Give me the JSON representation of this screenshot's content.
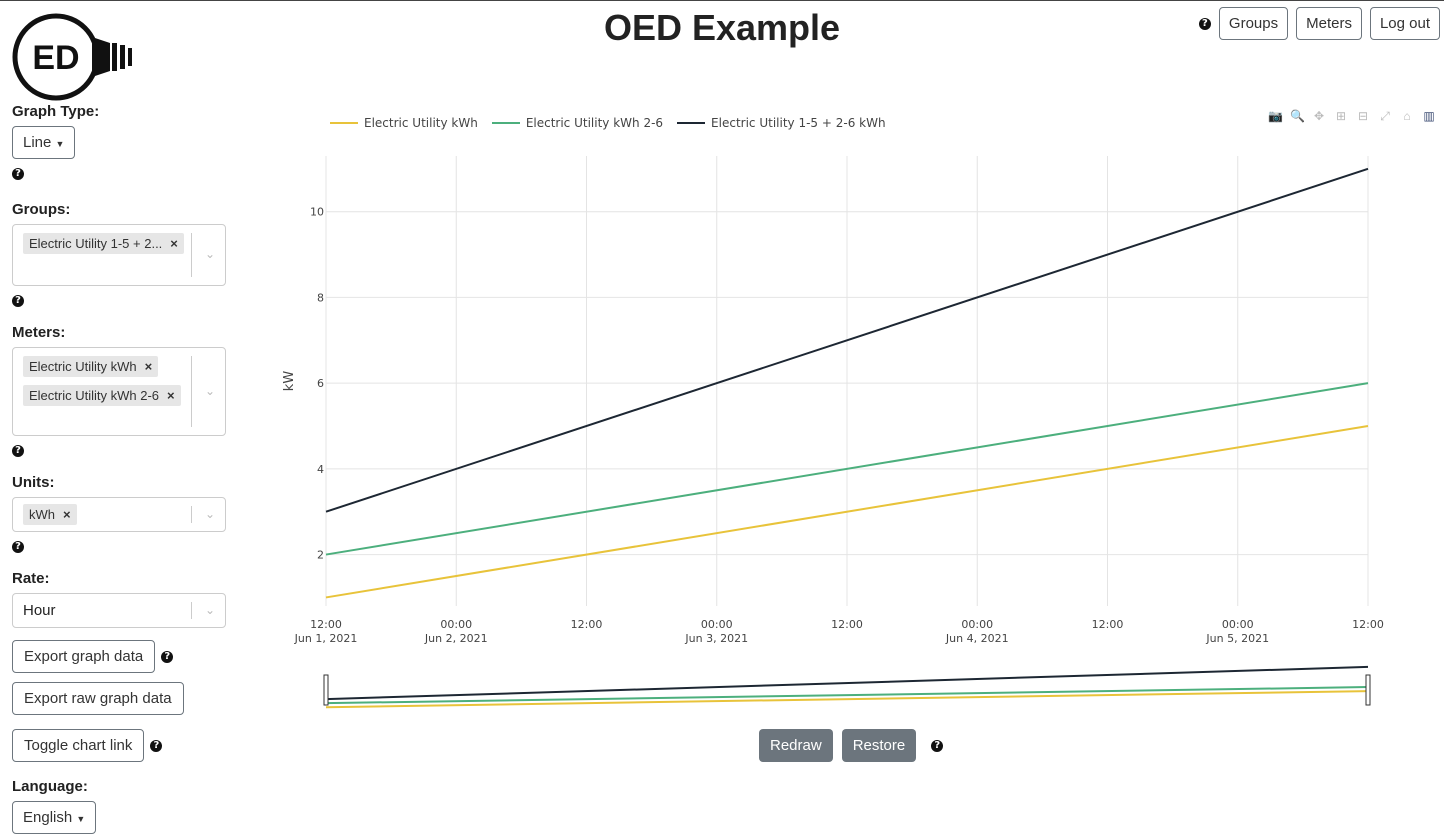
{
  "app": {
    "title": "OED Example",
    "logo_text": "ED"
  },
  "nav": {
    "help": "?",
    "groups": "Groups",
    "meters": "Meters",
    "logout": "Log out"
  },
  "sidebar": {
    "graph_type": {
      "label": "Graph Type:",
      "value": "Line"
    },
    "groups": {
      "label": "Groups:",
      "chips": [
        "Electric Utility 1-5 + 2..."
      ]
    },
    "meters": {
      "label": "Meters:",
      "chips": [
        "Electric Utility kWh",
        "Electric Utility kWh 2-6"
      ]
    },
    "units": {
      "label": "Units:",
      "chips": [
        "kWh"
      ]
    },
    "rate": {
      "label": "Rate:",
      "value": "Hour"
    },
    "export_graph": "Export graph data",
    "export_raw": "Export raw graph data",
    "toggle_link": "Toggle chart link",
    "language": {
      "label": "Language:",
      "value": "English"
    },
    "chip_remove": "×",
    "help": "?"
  },
  "chart_data": {
    "type": "line",
    "ylabel": "kW",
    "xlabel": "",
    "title": "",
    "ylim": [
      0.8,
      11.3
    ],
    "yticks": [
      2,
      4,
      6,
      8,
      10
    ],
    "grid": true,
    "legend_position": "top-left",
    "x": [
      "2021-06-01 12:00",
      "2021-06-05 12:00"
    ],
    "xlim": [
      "2021-06-01 12:00",
      "2021-06-05 12:00"
    ],
    "xticks": [
      {
        "value": "2021-06-01 12:00",
        "line1": "12:00",
        "line2": "Jun 1, 2021"
      },
      {
        "value": "2021-06-02 00:00",
        "line1": "00:00",
        "line2": "Jun 2, 2021"
      },
      {
        "value": "2021-06-02 12:00",
        "line1": "12:00",
        "line2": ""
      },
      {
        "value": "2021-06-03 00:00",
        "line1": "00:00",
        "line2": "Jun 3, 2021"
      },
      {
        "value": "2021-06-03 12:00",
        "line1": "12:00",
        "line2": ""
      },
      {
        "value": "2021-06-04 00:00",
        "line1": "00:00",
        "line2": "Jun 4, 2021"
      },
      {
        "value": "2021-06-04 12:00",
        "line1": "12:00",
        "line2": ""
      },
      {
        "value": "2021-06-05 00:00",
        "line1": "00:00",
        "line2": "Jun 5, 2021"
      },
      {
        "value": "2021-06-05 12:00",
        "line1": "12:00",
        "line2": ""
      }
    ],
    "series": [
      {
        "name": "Electric Utility kWh",
        "color": "#e8c33a",
        "values": [
          1,
          5
        ]
      },
      {
        "name": "Electric Utility kWh 2-6",
        "color": "#4caf7d",
        "values": [
          2,
          6
        ]
      },
      {
        "name": "Electric Utility 1-5 + 2-6 kWh",
        "color": "#1d2733",
        "values": [
          3,
          11
        ]
      }
    ],
    "range_slider": true
  },
  "chart_controls": {
    "redraw": "Redraw",
    "restore": "Restore",
    "help": "?"
  },
  "modebar_icons": [
    "camera-icon",
    "zoom-icon",
    "pan-icon",
    "zoom-in-icon",
    "zoom-out-icon",
    "autoscale-icon",
    "home-icon",
    "plotly-logo-icon"
  ]
}
